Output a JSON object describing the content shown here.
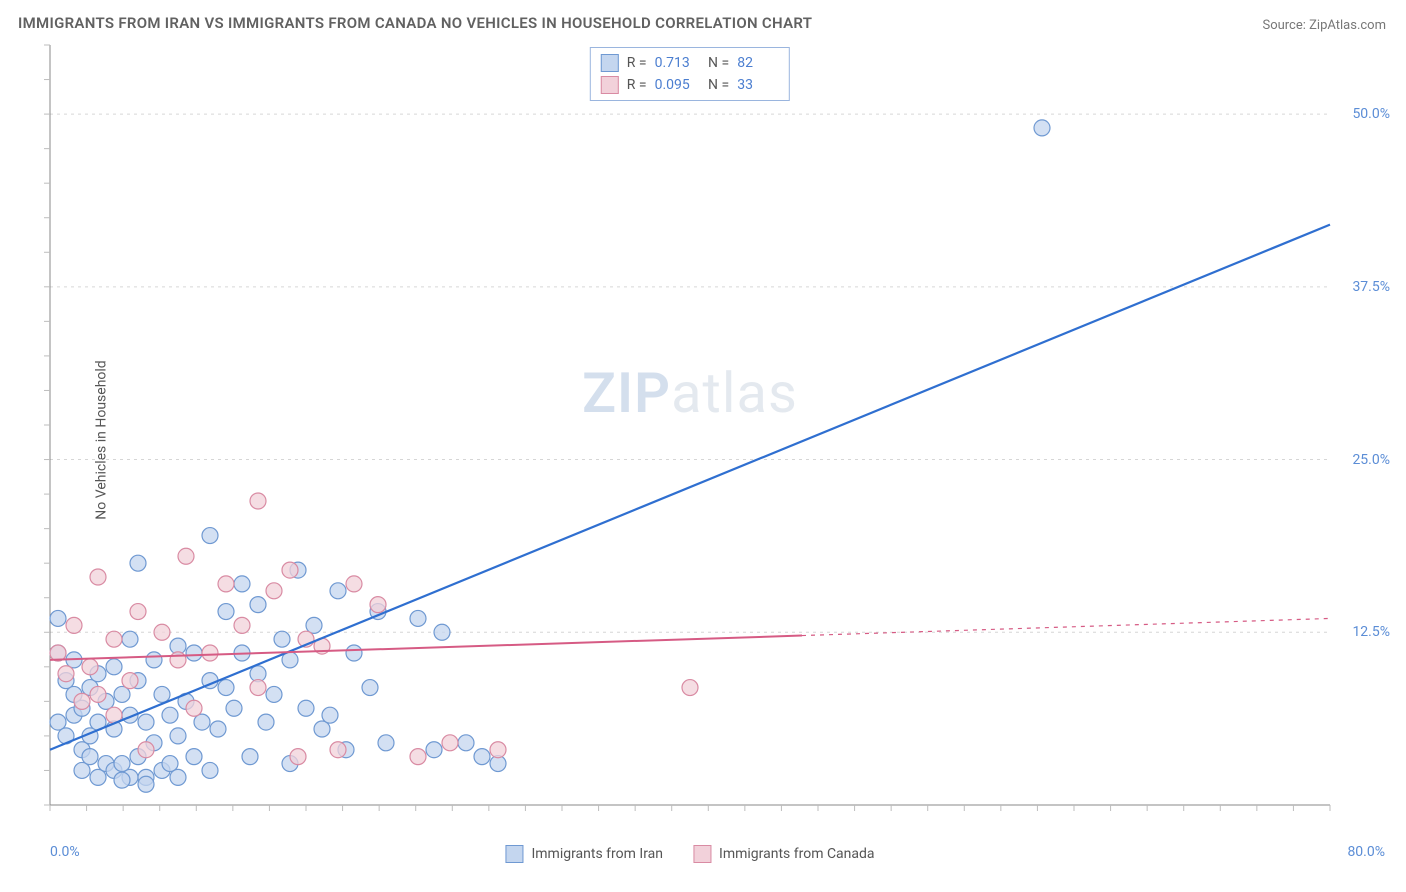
{
  "title": "IMMIGRANTS FROM IRAN VS IMMIGRANTS FROM CANADA NO VEHICLES IN HOUSEHOLD CORRELATION CHART",
  "source": "Source: ZipAtlas.com",
  "y_axis_label": "No Vehicles in Household",
  "watermark": {
    "part1": "ZIP",
    "part2": "atlas"
  },
  "chart": {
    "type": "scatter-with-regression",
    "background_color": "#ffffff",
    "grid_color": "#d6d6d6",
    "axis_color": "#888888",
    "tick_color": "#bdbdbd",
    "xlim": [
      0,
      80
    ],
    "ylim": [
      0,
      55
    ],
    "x_tick_labels": {
      "min": "0.0%",
      "max": "80.0%"
    },
    "y_ticks": [
      {
        "value": 12.5,
        "label": "12.5%"
      },
      {
        "value": 25.0,
        "label": "25.0%"
      },
      {
        "value": 37.5,
        "label": "37.5%"
      },
      {
        "value": 50.0,
        "label": "50.0%"
      }
    ],
    "x_minor_ticks_count": 35,
    "y_minor_ticks_count": 22,
    "label_color": "#5b8dd6",
    "label_fontsize": 14,
    "series": [
      {
        "name": "Immigrants from Iran",
        "marker_fill": "#c4d6ef",
        "marker_stroke": "#6f99d2",
        "marker_radius": 8,
        "line_color": "#2f6fd0",
        "line_width": 2.2,
        "r_value": "0.713",
        "n_value": "82",
        "regression": {
          "x1": 0,
          "y1": 4.0,
          "x2": 80,
          "y2": 42.0,
          "solid_until_x": 80
        },
        "points": [
          {
            "x": 0.5,
            "y": 6
          },
          {
            "x": 0.5,
            "y": 11
          },
          {
            "x": 0.5,
            "y": 13.5
          },
          {
            "x": 1,
            "y": 5
          },
          {
            "x": 1,
            "y": 9
          },
          {
            "x": 1.5,
            "y": 6.5
          },
          {
            "x": 1.5,
            "y": 8
          },
          {
            "x": 1.5,
            "y": 10.5
          },
          {
            "x": 2,
            "y": 2.5
          },
          {
            "x": 2,
            "y": 4
          },
          {
            "x": 2,
            "y": 7
          },
          {
            "x": 2.5,
            "y": 3.5
          },
          {
            "x": 2.5,
            "y": 5
          },
          {
            "x": 2.5,
            "y": 8.5
          },
          {
            "x": 3,
            "y": 2
          },
          {
            "x": 3,
            "y": 6
          },
          {
            "x": 3,
            "y": 9.5
          },
          {
            "x": 3.5,
            "y": 3
          },
          {
            "x": 3.5,
            "y": 7.5
          },
          {
            "x": 4,
            "y": 2.5
          },
          {
            "x": 4,
            "y": 5.5
          },
          {
            "x": 4,
            "y": 10
          },
          {
            "x": 4.5,
            "y": 3
          },
          {
            "x": 4.5,
            "y": 8
          },
          {
            "x": 5,
            "y": 2
          },
          {
            "x": 5,
            "y": 6.5
          },
          {
            "x": 5,
            "y": 12
          },
          {
            "x": 5.5,
            "y": 3.5
          },
          {
            "x": 5.5,
            "y": 9
          },
          {
            "x": 5.5,
            "y": 17.5
          },
          {
            "x": 6,
            "y": 2
          },
          {
            "x": 6,
            "y": 6
          },
          {
            "x": 6.5,
            "y": 4.5
          },
          {
            "x": 6.5,
            "y": 10.5
          },
          {
            "x": 7,
            "y": 2.5
          },
          {
            "x": 7,
            "y": 8
          },
          {
            "x": 7.5,
            "y": 3
          },
          {
            "x": 7.5,
            "y": 6.5
          },
          {
            "x": 8,
            "y": 2
          },
          {
            "x": 8,
            "y": 5
          },
          {
            "x": 8,
            "y": 11.5
          },
          {
            "x": 8.5,
            "y": 7.5
          },
          {
            "x": 9,
            "y": 3.5
          },
          {
            "x": 9,
            "y": 11
          },
          {
            "x": 9.5,
            "y": 6
          },
          {
            "x": 10,
            "y": 2.5
          },
          {
            "x": 10,
            "y": 9
          },
          {
            "x": 10,
            "y": 19.5
          },
          {
            "x": 10.5,
            "y": 5.5
          },
          {
            "x": 11,
            "y": 8.5
          },
          {
            "x": 11,
            "y": 14
          },
          {
            "x": 11.5,
            "y": 7
          },
          {
            "x": 12,
            "y": 11
          },
          {
            "x": 12,
            "y": 16
          },
          {
            "x": 12.5,
            "y": 3.5
          },
          {
            "x": 13,
            "y": 9.5
          },
          {
            "x": 13,
            "y": 14.5
          },
          {
            "x": 13.5,
            "y": 6
          },
          {
            "x": 14,
            "y": 8
          },
          {
            "x": 14.5,
            "y": 12
          },
          {
            "x": 15,
            "y": 3
          },
          {
            "x": 15,
            "y": 10.5
          },
          {
            "x": 15.5,
            "y": 17
          },
          {
            "x": 16,
            "y": 7
          },
          {
            "x": 16.5,
            "y": 13
          },
          {
            "x": 17,
            "y": 5.5
          },
          {
            "x": 17.5,
            "y": 6.5
          },
          {
            "x": 18,
            "y": 15.5
          },
          {
            "x": 18.5,
            "y": 4
          },
          {
            "x": 19,
            "y": 11
          },
          {
            "x": 20,
            "y": 8.5
          },
          {
            "x": 20.5,
            "y": 14
          },
          {
            "x": 21,
            "y": 4.5
          },
          {
            "x": 23,
            "y": 13.5
          },
          {
            "x": 24,
            "y": 4
          },
          {
            "x": 24.5,
            "y": 12.5
          },
          {
            "x": 26,
            "y": 4.5
          },
          {
            "x": 27,
            "y": 3.5
          },
          {
            "x": 28,
            "y": 3
          },
          {
            "x": 62,
            "y": 49
          },
          {
            "x": 4.5,
            "y": 1.8
          },
          {
            "x": 6,
            "y": 1.5
          }
        ]
      },
      {
        "name": "Immigrants from Canada",
        "marker_fill": "#f2d1da",
        "marker_stroke": "#d98ba3",
        "marker_radius": 8,
        "line_color": "#d65b84",
        "line_width": 2,
        "r_value": "0.095",
        "n_value": "33",
        "regression": {
          "x1": 0,
          "y1": 10.5,
          "x2": 80,
          "y2": 13.5,
          "solid_until_x": 47
        },
        "points": [
          {
            "x": 0.5,
            "y": 11
          },
          {
            "x": 1,
            "y": 9.5
          },
          {
            "x": 1.5,
            "y": 13
          },
          {
            "x": 2,
            "y": 7.5
          },
          {
            "x": 2.5,
            "y": 10
          },
          {
            "x": 3,
            "y": 8
          },
          {
            "x": 3,
            "y": 16.5
          },
          {
            "x": 4,
            "y": 6.5
          },
          {
            "x": 4,
            "y": 12
          },
          {
            "x": 5,
            "y": 9
          },
          {
            "x": 5.5,
            "y": 14
          },
          {
            "x": 6,
            "y": 4
          },
          {
            "x": 7,
            "y": 12.5
          },
          {
            "x": 8,
            "y": 10.5
          },
          {
            "x": 8.5,
            "y": 18
          },
          {
            "x": 9,
            "y": 7
          },
          {
            "x": 10,
            "y": 11
          },
          {
            "x": 11,
            "y": 16
          },
          {
            "x": 12,
            "y": 13
          },
          {
            "x": 13,
            "y": 8.5
          },
          {
            "x": 13,
            "y": 22
          },
          {
            "x": 14,
            "y": 15.5
          },
          {
            "x": 15,
            "y": 17
          },
          {
            "x": 15.5,
            "y": 3.5
          },
          {
            "x": 16,
            "y": 12
          },
          {
            "x": 17,
            "y": 11.5
          },
          {
            "x": 18,
            "y": 4
          },
          {
            "x": 19,
            "y": 16
          },
          {
            "x": 20.5,
            "y": 14.5
          },
          {
            "x": 23,
            "y": 3.5
          },
          {
            "x": 25,
            "y": 4.5
          },
          {
            "x": 28,
            "y": 4
          },
          {
            "x": 40,
            "y": 8.5
          }
        ]
      }
    ],
    "legend_bottom": [
      {
        "label": "Immigrants from Iran",
        "fill": "#c4d6ef",
        "stroke": "#6f99d2"
      },
      {
        "label": "Immigrants from Canada",
        "fill": "#f2d1da",
        "stroke": "#d98ba3"
      }
    ]
  }
}
